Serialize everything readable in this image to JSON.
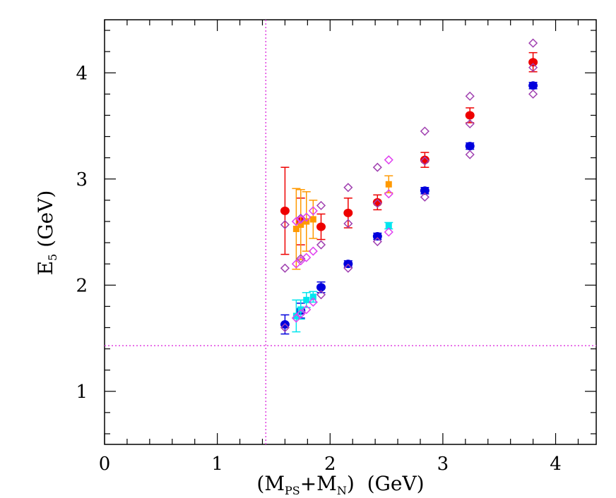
{
  "chart_data": {
    "type": "scatter",
    "xlabel": {
      "prefix": "(M",
      "sub1": "PS",
      "mid": "+M",
      "sub2": "N",
      "suffix": ")  (GeV)"
    },
    "ylabel": {
      "main": "E",
      "sub": "5",
      "suffix": " (GeV)"
    },
    "xlim": [
      0,
      4.36
    ],
    "ylim": [
      0.5,
      4.5
    ],
    "xticks": [
      0,
      1,
      2,
      3,
      4
    ],
    "yticks": [
      1,
      2,
      3,
      4
    ],
    "xtick_labels": [
      "0",
      "1",
      "2",
      "3",
      "4"
    ],
    "ytick_labels": [
      "1",
      "2",
      "3",
      "4"
    ],
    "reference_lines": {
      "vertical_x": 1.43,
      "horizontal_y": 1.43,
      "color": "#e040e0"
    },
    "series": [
      {
        "marker": "circle",
        "color": "#ee0000",
        "points": [
          {
            "x": 1.6,
            "y": 2.7,
            "err": 0.41
          },
          {
            "x": 1.74,
            "y": 2.6,
            "err": 0.22
          },
          {
            "x": 1.92,
            "y": 2.55,
            "err": 0.12
          },
          {
            "x": 2.16,
            "y": 2.68,
            "err": 0.14
          },
          {
            "x": 2.42,
            "y": 2.78,
            "err": 0.07
          },
          {
            "x": 2.84,
            "y": 3.18,
            "err": 0.07
          },
          {
            "x": 3.24,
            "y": 3.6,
            "err": 0.07
          },
          {
            "x": 3.8,
            "y": 4.1,
            "err": 0.09
          }
        ]
      },
      {
        "marker": "circle",
        "color": "#0000dd",
        "points": [
          {
            "x": 1.6,
            "y": 1.63,
            "err": 0.09
          },
          {
            "x": 1.74,
            "y": 1.76,
            "err": 0.07
          },
          {
            "x": 1.92,
            "y": 1.98,
            "err": 0.05
          },
          {
            "x": 2.16,
            "y": 2.2,
            "err": 0.03
          },
          {
            "x": 2.42,
            "y": 2.46,
            "err": 0.03
          },
          {
            "x": 2.84,
            "y": 2.89,
            "err": 0.03
          },
          {
            "x": 3.24,
            "y": 3.31,
            "err": 0.03
          },
          {
            "x": 3.8,
            "y": 3.88,
            "err": 0.03
          }
        ]
      },
      {
        "marker": "square",
        "color": "#ff9900",
        "points": [
          {
            "x": 1.7,
            "y": 2.53,
            "err": 0.38
          },
          {
            "x": 1.74,
            "y": 2.57,
            "err": 0.33
          },
          {
            "x": 1.79,
            "y": 2.6,
            "err": 0.28
          },
          {
            "x": 1.85,
            "y": 2.62,
            "err": 0.18
          },
          {
            "x": 2.52,
            "y": 2.95,
            "err": 0.08
          }
        ]
      },
      {
        "marker": "square",
        "color": "#00e5ee",
        "points": [
          {
            "x": 1.7,
            "y": 1.71,
            "err": 0.15
          },
          {
            "x": 1.74,
            "y": 1.77,
            "err": 0.09
          },
          {
            "x": 1.79,
            "y": 1.86,
            "err": 0.07
          },
          {
            "x": 1.85,
            "y": 1.89,
            "err": 0.05
          },
          {
            "x": 2.52,
            "y": 2.56,
            "err": 0.03
          }
        ]
      },
      {
        "marker": "diamond-open",
        "color": "#a040b0",
        "points": [
          {
            "x": 1.6,
            "y": 2.57
          },
          {
            "x": 1.6,
            "y": 2.16
          },
          {
            "x": 1.6,
            "y": 1.6
          },
          {
            "x": 1.74,
            "y": 2.63
          },
          {
            "x": 1.74,
            "y": 2.25
          },
          {
            "x": 1.74,
            "y": 1.73
          },
          {
            "x": 1.92,
            "y": 2.75
          },
          {
            "x": 1.92,
            "y": 2.38
          },
          {
            "x": 1.92,
            "y": 1.91
          },
          {
            "x": 2.16,
            "y": 2.92
          },
          {
            "x": 2.16,
            "y": 2.58
          },
          {
            "x": 2.16,
            "y": 2.16
          },
          {
            "x": 2.42,
            "y": 3.11
          },
          {
            "x": 2.42,
            "y": 2.77
          },
          {
            "x": 2.42,
            "y": 2.41
          },
          {
            "x": 2.84,
            "y": 3.45
          },
          {
            "x": 2.84,
            "y": 3.17
          },
          {
            "x": 2.84,
            "y": 2.83
          },
          {
            "x": 3.24,
            "y": 3.78
          },
          {
            "x": 3.24,
            "y": 3.52
          },
          {
            "x": 3.24,
            "y": 3.23
          },
          {
            "x": 3.8,
            "y": 4.28
          },
          {
            "x": 3.8,
            "y": 4.05
          },
          {
            "x": 3.8,
            "y": 3.8
          }
        ]
      },
      {
        "marker": "diamond-open",
        "color": "#e040f0",
        "points": [
          {
            "x": 1.7,
            "y": 2.6
          },
          {
            "x": 1.7,
            "y": 2.2
          },
          {
            "x": 1.7,
            "y": 1.69
          },
          {
            "x": 1.74,
            "y": 2.62
          },
          {
            "x": 1.74,
            "y": 2.23
          },
          {
            "x": 1.74,
            "y": 1.73
          },
          {
            "x": 1.79,
            "y": 2.64
          },
          {
            "x": 1.79,
            "y": 2.26
          },
          {
            "x": 1.79,
            "y": 1.77
          },
          {
            "x": 1.85,
            "y": 2.7
          },
          {
            "x": 1.85,
            "y": 2.32
          },
          {
            "x": 1.85,
            "y": 1.84
          },
          {
            "x": 2.52,
            "y": 3.18
          },
          {
            "x": 2.52,
            "y": 2.86
          },
          {
            "x": 2.52,
            "y": 2.5
          }
        ]
      }
    ]
  }
}
